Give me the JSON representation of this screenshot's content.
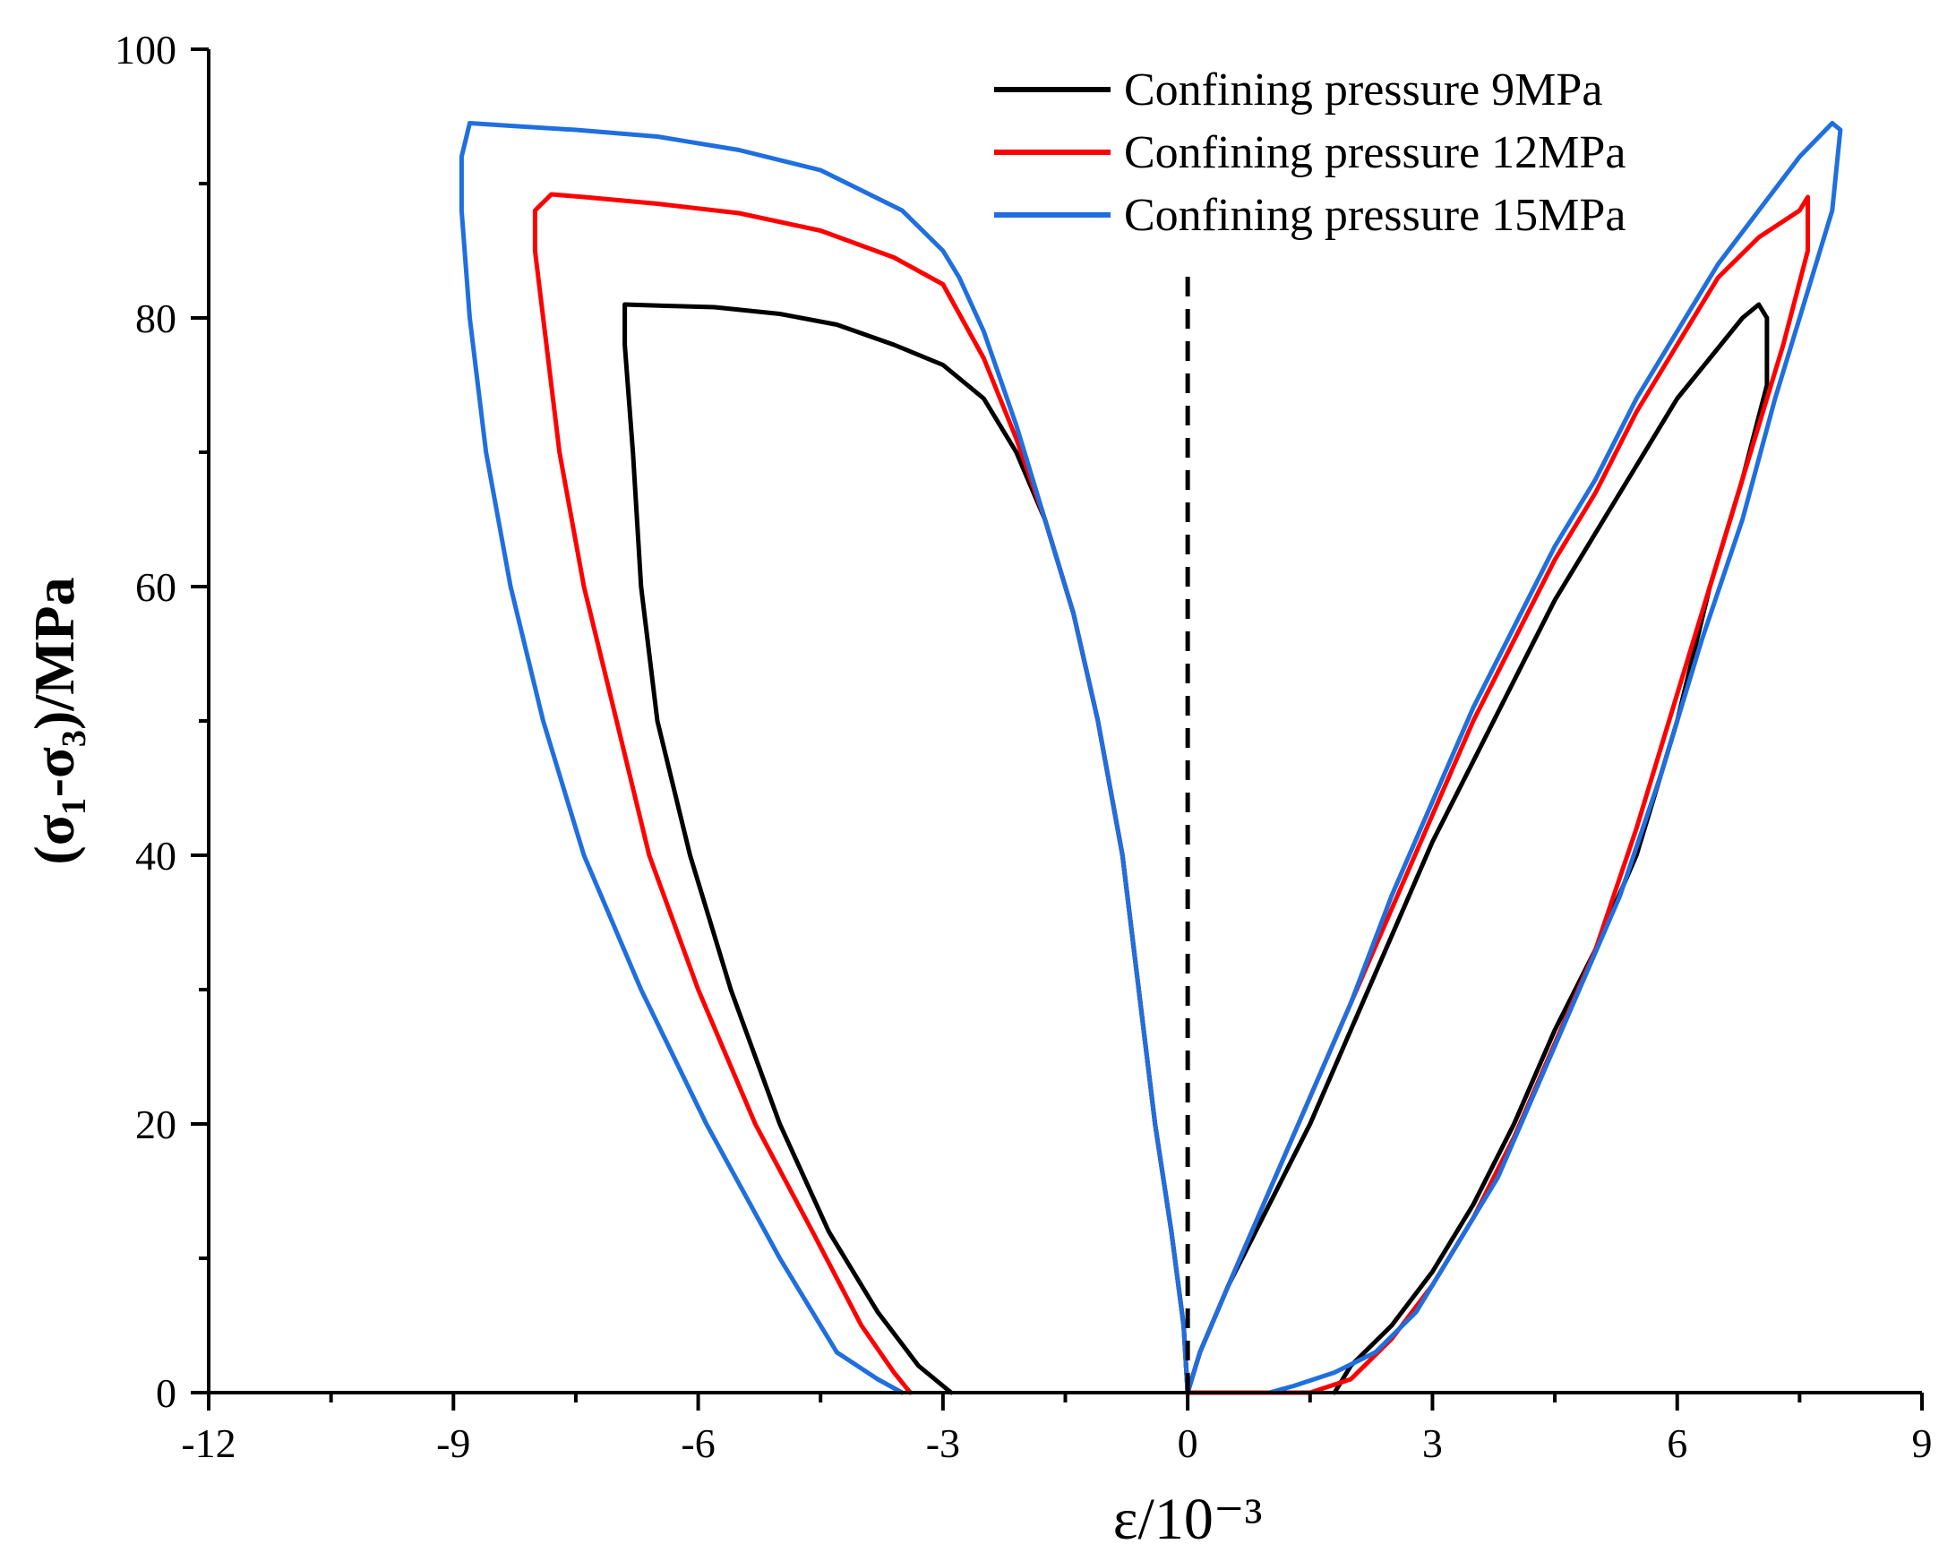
{
  "chart_data": {
    "type": "line",
    "xlabel": "ε/10⁻³",
    "ylabel": "(σ₁-σ₃)/MPa",
    "xlim": [
      -12,
      9
    ],
    "ylim": [
      0,
      100
    ],
    "x_ticks": [
      "-12",
      "-9",
      "-6",
      "-3",
      "0",
      "3",
      "6",
      "9"
    ],
    "y_ticks": [
      "0",
      "20",
      "40",
      "60",
      "80",
      "100"
    ],
    "x_tick_values": [
      -12,
      -9,
      -6,
      -3,
      0,
      3,
      6,
      9
    ],
    "y_tick_values": [
      0,
      20,
      40,
      60,
      80,
      100
    ],
    "reference_line": {
      "x": 0,
      "style": "dashed",
      "color": "#000000",
      "y_range": [
        0,
        84
      ]
    },
    "legend_position": "top-right",
    "series": [
      {
        "name": "Confining pressure 9MPa",
        "color": "#000000",
        "lateral": [
          [
            0,
            0
          ],
          [
            -0.05,
            5
          ],
          [
            -0.2,
            12
          ],
          [
            -0.4,
            20
          ],
          [
            -0.6,
            30
          ],
          [
            -0.8,
            40
          ],
          [
            -1.1,
            50
          ],
          [
            -1.4,
            58
          ],
          [
            -1.75,
            65
          ],
          [
            -2.1,
            70
          ],
          [
            -2.5,
            74
          ],
          [
            -3.0,
            76.5
          ],
          [
            -3.6,
            78
          ],
          [
            -4.3,
            79.5
          ],
          [
            -5.0,
            80.3
          ],
          [
            -5.8,
            80.8
          ],
          [
            -6.4,
            80.9
          ],
          [
            -6.9,
            81
          ],
          [
            -6.9,
            78
          ],
          [
            -6.8,
            70
          ],
          [
            -6.7,
            60
          ],
          [
            -6.5,
            50
          ],
          [
            -6.1,
            40
          ],
          [
            -5.6,
            30
          ],
          [
            -5.0,
            20
          ],
          [
            -4.4,
            12
          ],
          [
            -3.8,
            6
          ],
          [
            -3.3,
            2
          ],
          [
            -3.0,
            0.5
          ],
          [
            -2.9,
            0
          ]
        ],
        "axial": [
          [
            0,
            0
          ],
          [
            0.15,
            3
          ],
          [
            0.5,
            8
          ],
          [
            1.0,
            14
          ],
          [
            1.5,
            20
          ],
          [
            2.0,
            27
          ],
          [
            2.5,
            34
          ],
          [
            3.0,
            41
          ],
          [
            3.5,
            47
          ],
          [
            4.0,
            53
          ],
          [
            4.5,
            59
          ],
          [
            5.0,
            64
          ],
          [
            5.5,
            69
          ],
          [
            6.0,
            74
          ],
          [
            6.4,
            77
          ],
          [
            6.8,
            80
          ],
          [
            7.0,
            81
          ],
          [
            7.1,
            80
          ],
          [
            7.1,
            75
          ],
          [
            6.8,
            68
          ],
          [
            6.4,
            60
          ],
          [
            6.0,
            50
          ],
          [
            5.5,
            40
          ],
          [
            5.0,
            33
          ],
          [
            4.5,
            27
          ],
          [
            4.0,
            20
          ],
          [
            3.5,
            14
          ],
          [
            3.0,
            9
          ],
          [
            2.5,
            5
          ],
          [
            2.0,
            2
          ],
          [
            1.8,
            0
          ]
        ]
      },
      {
        "name": "Confining pressure 12MPa",
        "color": "#ff0000",
        "lateral": [
          [
            0,
            0
          ],
          [
            -0.05,
            5
          ],
          [
            -0.2,
            12
          ],
          [
            -0.4,
            20
          ],
          [
            -0.6,
            30
          ],
          [
            -0.8,
            40
          ],
          [
            -1.1,
            50
          ],
          [
            -1.4,
            58
          ],
          [
            -1.75,
            65
          ],
          [
            -2.1,
            71
          ],
          [
            -2.5,
            77
          ],
          [
            -3.0,
            82.5
          ],
          [
            -3.6,
            84.5
          ],
          [
            -4.5,
            86.5
          ],
          [
            -5.5,
            87.8
          ],
          [
            -6.5,
            88.5
          ],
          [
            -7.4,
            89
          ],
          [
            -7.8,
            89.2
          ],
          [
            -8.0,
            88
          ],
          [
            -8.0,
            85
          ],
          [
            -7.9,
            80
          ],
          [
            -7.7,
            70
          ],
          [
            -7.4,
            60
          ],
          [
            -7.0,
            50
          ],
          [
            -6.6,
            40
          ],
          [
            -6.0,
            30
          ],
          [
            -5.3,
            20
          ],
          [
            -4.6,
            12
          ],
          [
            -4.0,
            5
          ],
          [
            -3.6,
            1.5
          ],
          [
            -3.4,
            0
          ]
        ],
        "axial": [
          [
            0,
            0
          ],
          [
            0.15,
            3
          ],
          [
            0.5,
            8
          ],
          [
            1.0,
            15
          ],
          [
            1.5,
            22
          ],
          [
            2.0,
            29
          ],
          [
            2.5,
            36
          ],
          [
            3.0,
            43
          ],
          [
            3.5,
            50
          ],
          [
            4.0,
            56
          ],
          [
            4.5,
            62
          ],
          [
            5.0,
            67
          ],
          [
            5.5,
            73
          ],
          [
            6.0,
            78
          ],
          [
            6.5,
            83
          ],
          [
            7.0,
            86
          ],
          [
            7.5,
            88
          ],
          [
            7.6,
            89
          ],
          [
            7.6,
            85
          ],
          [
            7.3,
            78
          ],
          [
            6.9,
            70
          ],
          [
            6.5,
            62
          ],
          [
            6.0,
            52
          ],
          [
            5.5,
            42
          ],
          [
            5.0,
            33
          ],
          [
            4.5,
            26
          ],
          [
            4.0,
            19
          ],
          [
            3.5,
            13
          ],
          [
            3.0,
            8
          ],
          [
            2.5,
            4
          ],
          [
            2.0,
            1
          ],
          [
            1.5,
            0
          ],
          [
            0.5,
            0
          ],
          [
            0,
            0
          ]
        ]
      },
      {
        "name": "Confining pressure 15MPa",
        "color": "#1f6fde",
        "lateral": [
          [
            0,
            0
          ],
          [
            -0.05,
            5
          ],
          [
            -0.2,
            12
          ],
          [
            -0.4,
            20
          ],
          [
            -0.6,
            30
          ],
          [
            -0.8,
            40
          ],
          [
            -1.1,
            50
          ],
          [
            -1.4,
            58
          ],
          [
            -1.75,
            65
          ],
          [
            -2.1,
            72
          ],
          [
            -2.5,
            79
          ],
          [
            -2.8,
            83
          ],
          [
            -3.0,
            85
          ],
          [
            -3.5,
            88
          ],
          [
            -4.5,
            91
          ],
          [
            -5.5,
            92.5
          ],
          [
            -6.5,
            93.5
          ],
          [
            -7.5,
            94
          ],
          [
            -8.3,
            94.3
          ],
          [
            -8.8,
            94.5
          ],
          [
            -8.9,
            92
          ],
          [
            -8.9,
            88
          ],
          [
            -8.8,
            80
          ],
          [
            -8.6,
            70
          ],
          [
            -8.3,
            60
          ],
          [
            -7.9,
            50
          ],
          [
            -7.4,
            40
          ],
          [
            -6.7,
            30
          ],
          [
            -5.9,
            20
          ],
          [
            -5.0,
            10
          ],
          [
            -4.3,
            3
          ],
          [
            -3.8,
            1
          ],
          [
            -3.5,
            0
          ]
        ],
        "axial": [
          [
            0,
            0
          ],
          [
            0.15,
            3
          ],
          [
            0.5,
            8
          ],
          [
            1.0,
            15
          ],
          [
            1.5,
            22
          ],
          [
            2.0,
            29
          ],
          [
            2.5,
            37
          ],
          [
            3.0,
            44
          ],
          [
            3.5,
            51
          ],
          [
            4.0,
            57
          ],
          [
            4.5,
            63
          ],
          [
            5.0,
            68
          ],
          [
            5.5,
            74
          ],
          [
            6.0,
            79
          ],
          [
            6.5,
            84
          ],
          [
            7.0,
            88
          ],
          [
            7.5,
            92
          ],
          [
            7.9,
            94.5
          ],
          [
            8.0,
            94
          ],
          [
            7.9,
            88
          ],
          [
            7.6,
            82
          ],
          [
            7.2,
            74
          ],
          [
            6.8,
            65
          ],
          [
            6.3,
            56
          ],
          [
            5.8,
            46
          ],
          [
            5.3,
            37
          ],
          [
            4.8,
            30
          ],
          [
            4.3,
            23
          ],
          [
            3.8,
            16
          ],
          [
            3.3,
            11
          ],
          [
            2.8,
            6
          ],
          [
            2.3,
            3
          ],
          [
            1.8,
            1.5
          ],
          [
            1.3,
            0.5
          ],
          [
            1.0,
            0
          ]
        ]
      }
    ]
  }
}
